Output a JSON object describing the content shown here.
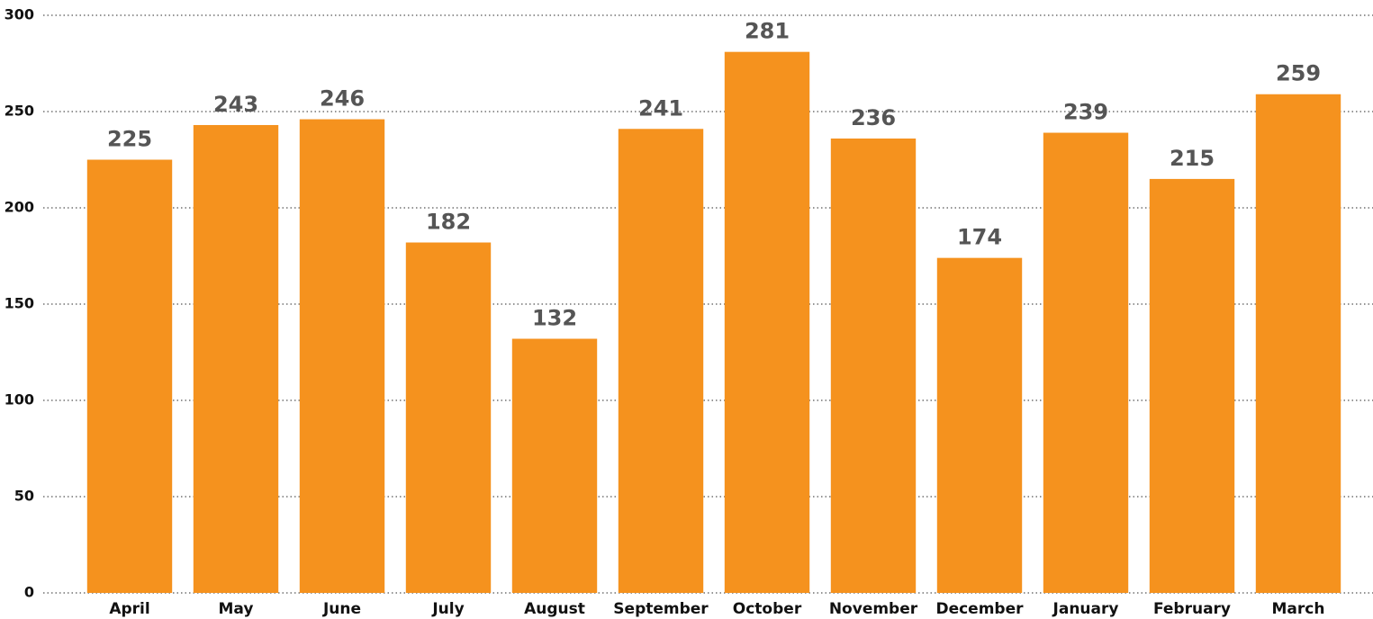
{
  "chart_data": {
    "type": "bar",
    "categories": [
      "April",
      "May",
      "June",
      "July",
      "August",
      "September",
      "October",
      "November",
      "December",
      "January",
      "February",
      "March"
    ],
    "values": [
      225,
      243,
      246,
      182,
      132,
      241,
      281,
      236,
      174,
      239,
      215,
      259
    ],
    "color": "#f5921e",
    "ylim": [
      0,
      300
    ],
    "yticks": [
      0,
      50,
      100,
      150,
      200,
      250,
      300
    ],
    "grid": true
  }
}
